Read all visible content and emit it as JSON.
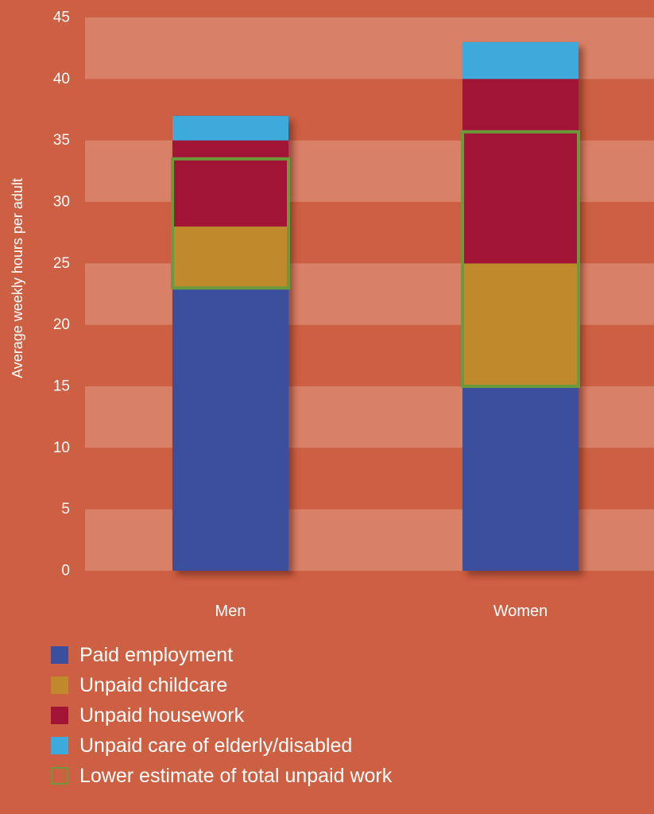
{
  "chart_data": {
    "type": "bar",
    "stacked": true,
    "categories": [
      "Men",
      "Women"
    ],
    "ylabel": "Average weekly hours per adult",
    "ylim": [
      0,
      45
    ],
    "yticks": [
      0,
      5,
      10,
      15,
      20,
      25,
      30,
      35,
      40,
      45
    ],
    "grid": "alternating horizontal bands",
    "legend_position": "bottom-left",
    "series": [
      {
        "name": "Paid employment",
        "color": "#3c4f9d",
        "values": [
          23,
          15
        ]
      },
      {
        "name": "Unpaid childcare",
        "color": "#c0892c",
        "values": [
          5,
          10
        ]
      },
      {
        "name": "Unpaid housework",
        "color": "#a31536",
        "values": [
          7,
          15
        ]
      },
      {
        "name": "Unpaid care of elderly/disabled",
        "color": "#3eaadc",
        "values": [
          2,
          3
        ]
      }
    ],
    "outline_series": {
      "name": "Lower estimate of total unpaid work",
      "color": "#6a9a3c",
      "ranges": [
        [
          23,
          33.5
        ],
        [
          15,
          35.7
        ]
      ]
    }
  }
}
